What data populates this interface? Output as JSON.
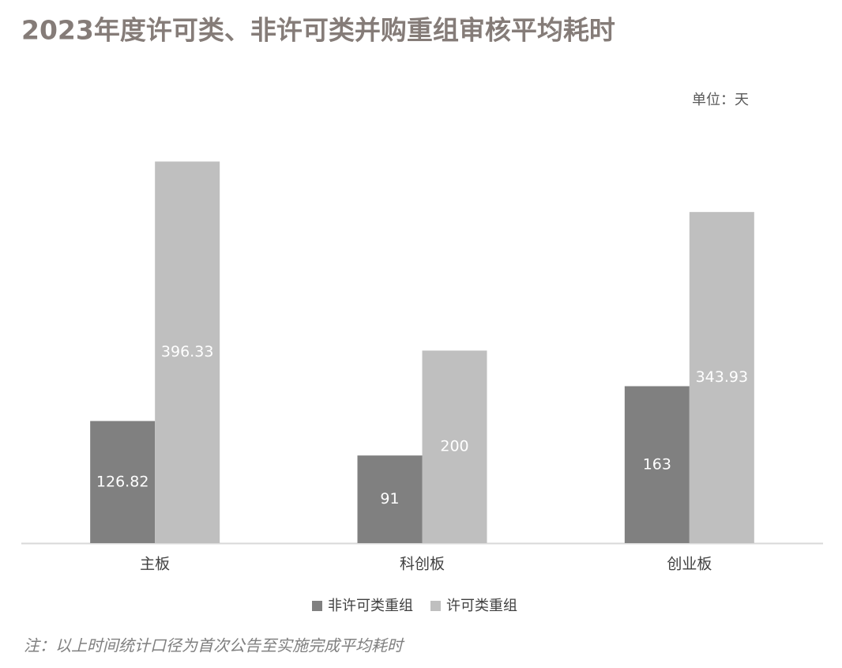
{
  "chart_data": {
    "type": "bar",
    "title": "2023年度许可类、非许可类并购重组审核平均耗时",
    "unit_label": "单位：天",
    "note": "注：以上时间统计口径为首次公告至实施完成平均耗时",
    "categories": [
      "主板",
      "科创板",
      "创业板"
    ],
    "series": [
      {
        "name": "非许可类重组",
        "color": "#808080",
        "values": [
          126.82,
          91,
          163
        ]
      },
      {
        "name": "许可类重组",
        "color": "#bfbfbf",
        "values": [
          396.33,
          200,
          343.93
        ]
      }
    ],
    "ylim": [
      0,
      450
    ]
  }
}
